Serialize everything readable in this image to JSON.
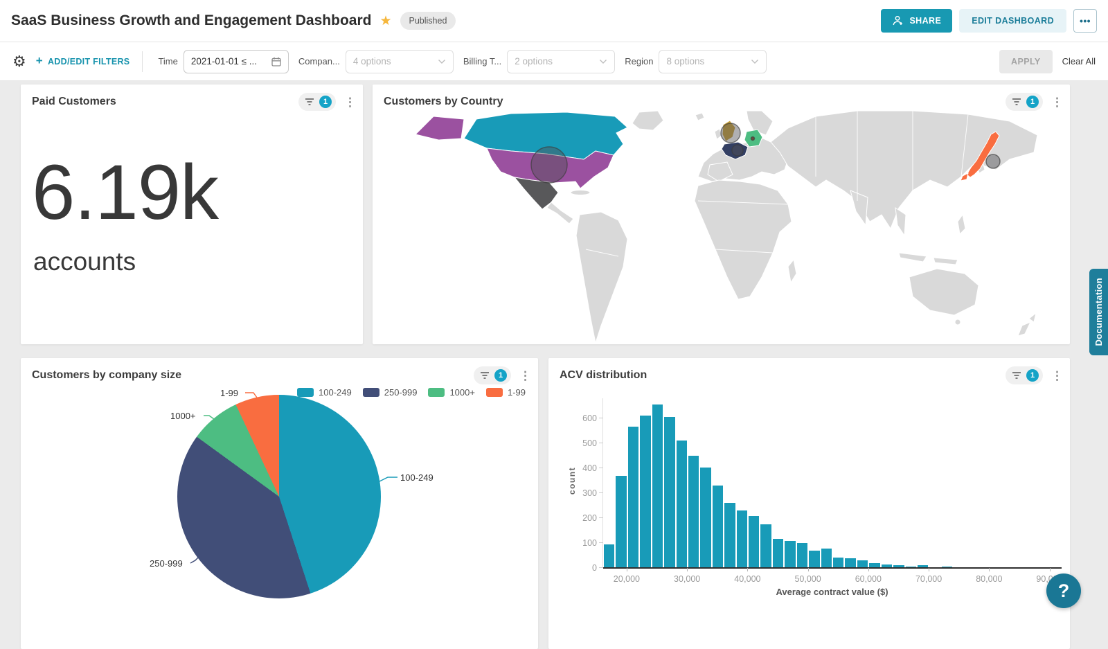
{
  "header": {
    "title": "SaaS Business Growth and Engagement Dashboard",
    "status_badge": "Published",
    "share_label": "SHARE",
    "edit_label": "EDIT DASHBOARD"
  },
  "filter_bar": {
    "add_edit_label": "ADD/EDIT FILTERS",
    "filters": [
      {
        "label": "Time",
        "value": "2021-01-01 ≤ ..."
      },
      {
        "label": "Compan...",
        "value": "4 options"
      },
      {
        "label": "Billing T...",
        "value": "2 options"
      },
      {
        "label": "Region",
        "value": "8 options"
      }
    ],
    "apply_label": "APPLY",
    "clear_label": "Clear All"
  },
  "cards": {
    "kpi": {
      "title": "Paid Customers",
      "filter_count": "1",
      "value": "6.19k",
      "unit": "accounts"
    },
    "map": {
      "title": "Customers by Country",
      "filter_count": "1"
    },
    "pie": {
      "title": "Customers by company size",
      "filter_count": "1"
    },
    "hist": {
      "title": "ACV distribution",
      "filter_count": "1"
    }
  },
  "side": {
    "documentation_label": "Documentation",
    "help_label": "?"
  },
  "chart_data": [
    {
      "type": "pie",
      "title": "Customers by company size",
      "legend_position": "top-right",
      "slices": [
        {
          "label": "100-249",
          "percent": 45,
          "color": "#189bb8"
        },
        {
          "label": "250-999",
          "percent": 40,
          "color": "#414e78"
        },
        {
          "label": "1000+",
          "percent": 8,
          "color": "#4dbd82"
        },
        {
          "label": "1-99",
          "percent": 7,
          "color": "#f96d40"
        }
      ]
    },
    {
      "type": "bar",
      "title": "ACV distribution",
      "xlabel": "Average contract value ($)",
      "ylabel": "count",
      "bar_color": "#189bb8",
      "bin_start": 16000,
      "bin_width": 2000,
      "values": [
        95,
        370,
        565,
        610,
        655,
        605,
        510,
        450,
        402,
        330,
        262,
        230,
        207,
        175,
        118,
        108,
        100,
        70,
        78,
        43,
        40,
        30,
        20,
        15,
        12,
        6,
        10,
        0,
        5
      ],
      "xticks": [
        20000,
        30000,
        40000,
        50000,
        60000,
        70000,
        80000,
        90000
      ],
      "yticks": [
        0,
        100,
        200,
        300,
        400,
        500,
        600
      ],
      "xlim": [
        16000,
        92000
      ],
      "ylim": [
        0,
        680
      ],
      "grid": false
    },
    {
      "type": "map",
      "title": "Customers by Country",
      "base_land_color": "#d9d9d9",
      "highlights": [
        {
          "country": "Canada",
          "color": "#189bb8"
        },
        {
          "country": "United States",
          "color": "#9b51a0"
        },
        {
          "country": "Mexico",
          "color": "#58585a"
        },
        {
          "country": "United Kingdom",
          "color": "#c9a035"
        },
        {
          "country": "France",
          "color": "#333f63"
        },
        {
          "country": "Germany",
          "color": "#4dbd82"
        },
        {
          "country": "Japan",
          "color": "#f96d40"
        }
      ],
      "markers": [
        "United States",
        "United Kingdom",
        "France",
        "Germany",
        "Japan"
      ]
    }
  ]
}
